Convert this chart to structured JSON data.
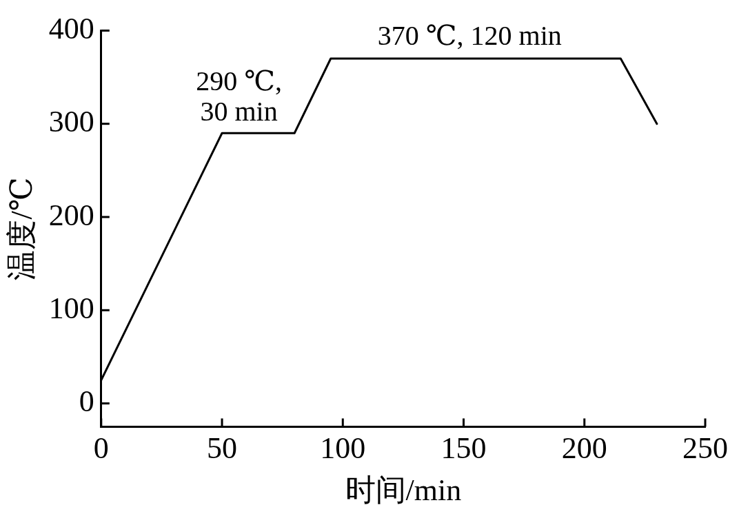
{
  "chart_data": {
    "type": "line",
    "xlabel": "时间/min",
    "ylabel": "温度/℃",
    "x": [
      0,
      50,
      80,
      95,
      215,
      230
    ],
    "series": [
      {
        "color": "#000000",
        "values": [
          25,
          290,
          290,
          370,
          370,
          300
        ]
      }
    ],
    "xlim": [
      0,
      250
    ],
    "ylim": [
      -25,
      400
    ],
    "xticks": [
      0,
      50,
      100,
      150,
      200,
      250
    ],
    "yticks": [
      0,
      100,
      200,
      300,
      400
    ],
    "marker": "none",
    "line_style": "solid",
    "annotations": [
      "290 ℃,\n30 min",
      "370 ℃, 120 min"
    ]
  }
}
